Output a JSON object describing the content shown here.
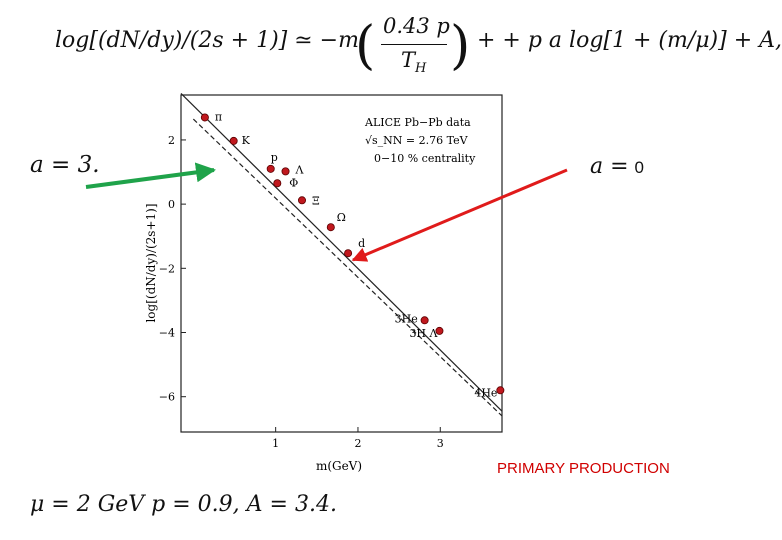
{
  "formula": {
    "text": "log[(dN/dy)/(2s + 1)] ≃ −m (0.43 p / T_H) + + p a log[1 + (m/μ)] + A,",
    "lhs": "log[(dN/dy)/(2s + 1)] ≃ −m",
    "numerator": "0.43 p",
    "denominator": "T",
    "denominator_sub": "H",
    "rhs": "+ + p a log[1 + (m/μ)] + A,"
  },
  "annotations": {
    "a_left": "a = 3.",
    "a_right_prefix": "a =",
    "a_right_value": "0",
    "params": "μ = 2 GeV   p = 0.9,  A = 3.4.",
    "primary_production": "PRIMARY PRODUCTION"
  },
  "colors": {
    "green_arrow": "#1fa34a",
    "red_arrow": "#e01b1b",
    "points": "#c0181e",
    "primary_text": "#d00000"
  },
  "chart_data": {
    "type": "scatter",
    "legend_lines": [
      "ALICE Pb−Pb data",
      "√s_NN = 2.76 TeV",
      "0−10 % centrality"
    ],
    "xlabel": "m(GeV)",
    "ylabel": "log[(dN/dy)/(2s+1)]",
    "xlim": [
      -0.15,
      3.75
    ],
    "ylim": [
      -7.1,
      3.4
    ],
    "xticks": [
      1,
      2,
      3
    ],
    "yticks": [
      2,
      0,
      -2,
      -4,
      -6
    ],
    "grid": false,
    "points": [
      {
        "label": "π",
        "x": 0.14,
        "y": 2.7
      },
      {
        "label": "K",
        "x": 0.49,
        "y": 1.97
      },
      {
        "label": "p",
        "x": 0.94,
        "y": 1.1
      },
      {
        "label": "Λ",
        "x": 1.12,
        "y": 1.02
      },
      {
        "label": "Φ",
        "x": 1.02,
        "y": 0.65
      },
      {
        "label": "Ξ",
        "x": 1.32,
        "y": 0.12
      },
      {
        "label": "Ω",
        "x": 1.67,
        "y": -0.72
      },
      {
        "label": "d",
        "x": 1.88,
        "y": -1.53
      },
      {
        "label": "3He",
        "x": 2.81,
        "y": -3.62
      },
      {
        "label": "3H Λ",
        "x": 2.99,
        "y": -3.95
      },
      {
        "label": "4He",
        "x": 3.73,
        "y": -5.8
      }
    ],
    "fit_lines": [
      {
        "style": "solid",
        "x": [
          -0.15,
          3.75
        ],
        "y": [
          3.45,
          -6.45
        ]
      },
      {
        "style": "dashed",
        "x": [
          0.0,
          3.75
        ],
        "y": [
          2.65,
          -6.6
        ]
      }
    ]
  }
}
